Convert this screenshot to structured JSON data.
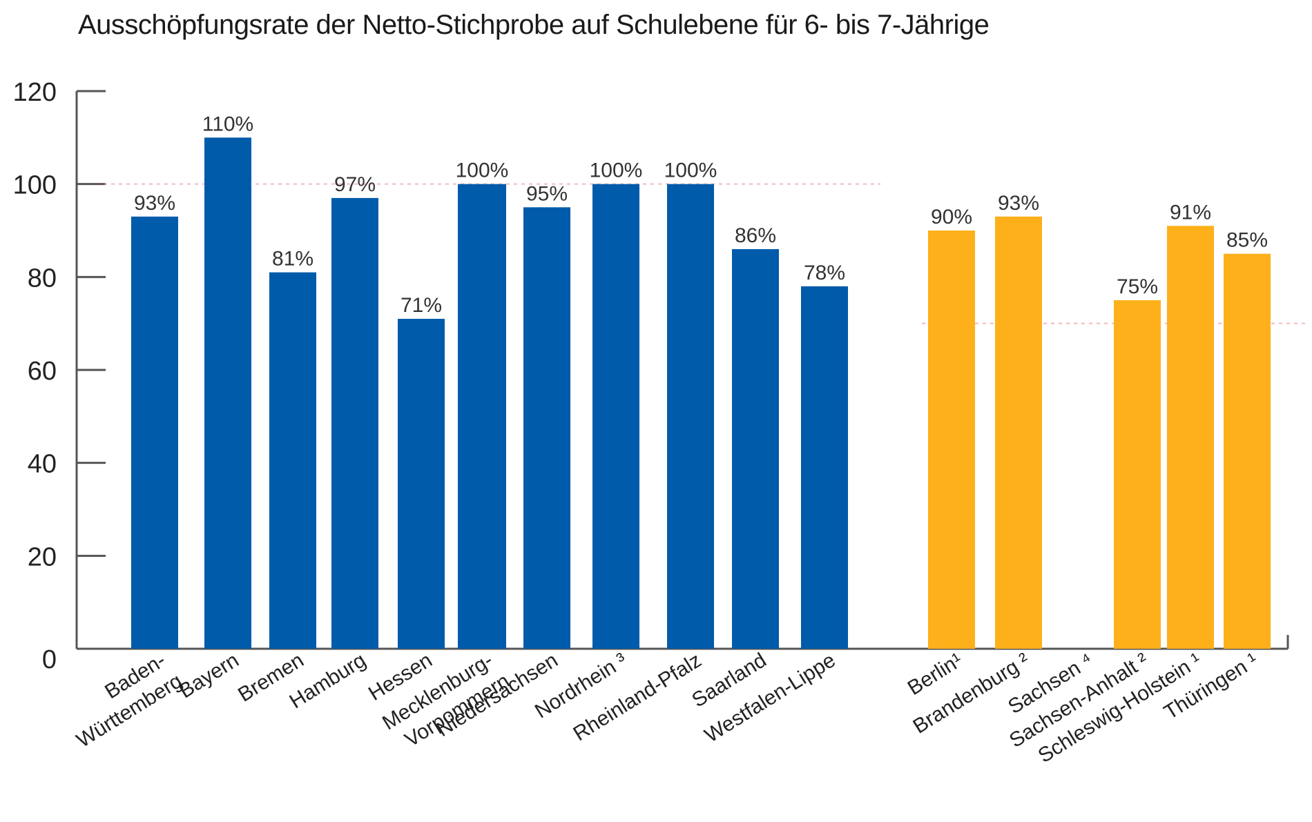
{
  "chart_data": {
    "type": "bar",
    "title": "Ausschöpfungsrate der Netto-Stichprobe auf Schulebene für 6- bis 7-Jährige",
    "xlabel": "",
    "ylabel": "",
    "ylim": [
      0,
      120
    ],
    "yticks": [
      0,
      20,
      40,
      60,
      80,
      100,
      120
    ],
    "grid": false,
    "legend": "none",
    "value_suffix": "%",
    "colors": {
      "group_a": "#005baa",
      "group_b": "#fdb01a",
      "axis": "#555555",
      "reference": "#e88080"
    },
    "groups": [
      {
        "name": "group_a",
        "reference_line": 100,
        "categories": [
          [
            "Baden-",
            "Württemberg"
          ],
          [
            "Bayern"
          ],
          [
            "Bremen"
          ],
          [
            "Hamburg"
          ],
          [
            "Hessen"
          ],
          [
            "Mecklenburg-",
            "Vorpommern"
          ],
          [
            "Niedersachsen"
          ],
          [
            "Nordrhein ³"
          ],
          [
            "Rheinland-Pfalz"
          ],
          [
            "Saarland"
          ],
          [
            "Westfalen-Lippe"
          ]
        ],
        "values": [
          93,
          110,
          81,
          97,
          71,
          100,
          95,
          100,
          100,
          86,
          78
        ],
        "labels": [
          "93%",
          "110%",
          "81%",
          "97%",
          "71%",
          "100%",
          "95%",
          "100%",
          "100%",
          "86%",
          "78%"
        ]
      },
      {
        "name": "group_b",
        "reference_line": 70,
        "categories": [
          [
            "Berlin¹"
          ],
          [
            "Brandenburg ²"
          ],
          [
            "Sachsen ⁴"
          ],
          [
            "Sachsen-Anhalt ²"
          ],
          [
            "Schleswig-Holstein ¹"
          ],
          [
            "Thüringen ¹"
          ]
        ],
        "values": [
          90,
          93,
          null,
          75,
          91,
          85
        ],
        "labels": [
          "90%",
          "93%",
          "",
          "75%",
          "91%",
          "85%"
        ]
      }
    ]
  }
}
